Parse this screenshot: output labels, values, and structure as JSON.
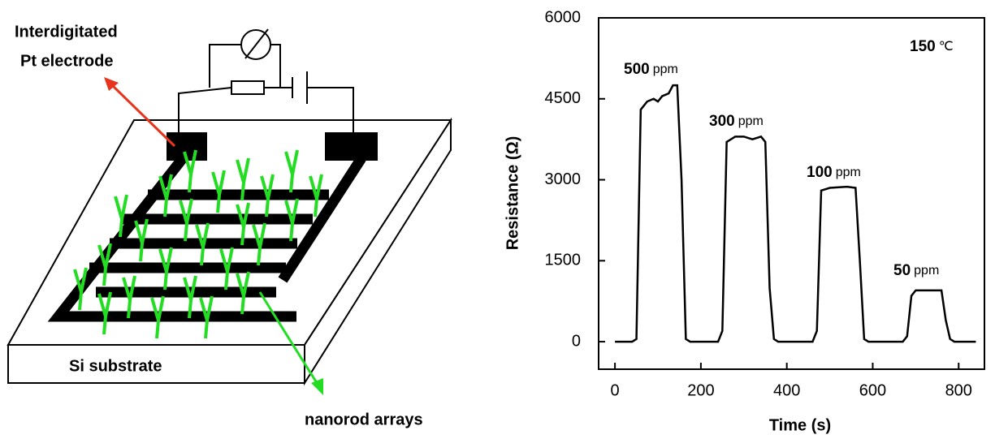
{
  "diagram": {
    "electrode_label": [
      "Interdigitated",
      "Pt electrode"
    ],
    "substrate_label": "Si substrate",
    "nanorod_label": "nanorod arrays"
  },
  "chart_data": {
    "type": "line",
    "xlabel": "Time (s)",
    "ylabel": "Resistance (Ω)",
    "color": "#000000",
    "x": [
      0,
      40,
      50,
      60,
      75,
      90,
      100,
      110,
      125,
      135,
      145,
      155,
      165,
      175,
      240,
      250,
      260,
      280,
      300,
      320,
      340,
      350,
      360,
      370,
      380,
      460,
      470,
      480,
      500,
      540,
      560,
      570,
      580,
      590,
      670,
      680,
      690,
      700,
      740,
      760,
      770,
      780,
      790,
      840
    ],
    "values": [
      0,
      0,
      50,
      4300,
      4450,
      4500,
      4450,
      4550,
      4600,
      4750,
      4750,
      3000,
      50,
      0,
      0,
      200,
      3700,
      3800,
      3800,
      3750,
      3800,
      3700,
      1000,
      50,
      0,
      0,
      200,
      2800,
      2850,
      2870,
      2850,
      1500,
      50,
      0,
      0,
      100,
      850,
      950,
      950,
      950,
      400,
      50,
      0,
      0
    ],
    "xlim": [
      -38,
      860
    ],
    "ylim": [
      -510,
      6000
    ],
    "xticks": [
      0,
      200,
      400,
      600,
      800
    ],
    "yticks": [
      0,
      1500,
      3000,
      4500,
      6000
    ],
    "annotations": [
      {
        "text": "500",
        "unit": "ppm"
      },
      {
        "text": "300",
        "unit": "ppm"
      },
      {
        "text": "100",
        "unit": "ppm"
      },
      {
        "text": "50",
        "unit": "ppm"
      },
      {
        "text": "150",
        "unit": "℃"
      }
    ]
  }
}
